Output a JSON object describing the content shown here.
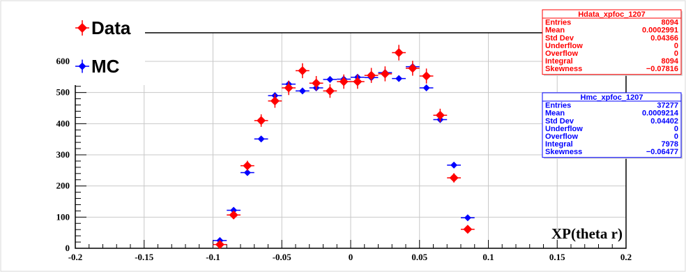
{
  "chart_data": {
    "type": "scatter",
    "x_axis": {
      "title": "XP(theta r)",
      "min": -0.2,
      "max": 0.2,
      "tick_labels": [
        "-0.2",
        "-0.15",
        "-0.1",
        "-0.05",
        "0",
        "0.05",
        "0.1",
        "0.15",
        "0.2"
      ],
      "tick_values": [
        -0.2,
        -0.15,
        -0.1,
        -0.05,
        0,
        0.05,
        0.1,
        0.15,
        0.2
      ]
    },
    "y_axis": {
      "min": 0,
      "max": 700,
      "tick_labels": [
        "0",
        "100",
        "200",
        "300",
        "400",
        "500",
        "600"
      ],
      "tick_values": [
        0,
        100,
        200,
        300,
        400,
        500,
        600
      ]
    },
    "grid": true,
    "bin_half_width": 0.005,
    "legend": {
      "placement": "top-left",
      "entries": [
        {
          "label": "Data",
          "color": "#ff0000"
        },
        {
          "label": "MC",
          "color": "#0000ff"
        }
      ]
    },
    "series": [
      {
        "name": "Data",
        "color": "#ff0000",
        "marker": "diamond",
        "x": [
          -0.095,
          -0.085,
          -0.075,
          -0.065,
          -0.055,
          -0.045,
          -0.035,
          -0.025,
          -0.015,
          -0.005,
          0.005,
          0.015,
          0.025,
          0.035,
          0.045,
          0.055,
          0.065,
          0.075,
          0.085
        ],
        "y": [
          12,
          107,
          265,
          410,
          473,
          515,
          570,
          530,
          505,
          535,
          535,
          555,
          560,
          628,
          578,
          553,
          427,
          226,
          61
        ],
        "err": [
          4,
          10,
          16,
          20,
          22,
          23,
          24,
          23,
          22,
          23,
          23,
          24,
          24,
          25,
          24,
          24,
          21,
          15,
          8
        ]
      },
      {
        "name": "MC",
        "color": "#0000ff",
        "marker": "diamond",
        "x": [
          -0.095,
          -0.085,
          -0.075,
          -0.065,
          -0.055,
          -0.045,
          -0.035,
          -0.025,
          -0.015,
          -0.005,
          0.005,
          0.015,
          0.025,
          0.035,
          0.045,
          0.055,
          0.065,
          0.075,
          0.085
        ],
        "y": [
          25,
          122,
          243,
          351,
          490,
          527,
          505,
          515,
          542,
          543,
          549,
          548,
          564,
          545,
          583,
          515,
          413,
          267,
          98
        ],
        "err": [
          3,
          5,
          7,
          8,
          10,
          10,
          10,
          10,
          10,
          10,
          10,
          10,
          10,
          10,
          10,
          10,
          9,
          7,
          4
        ]
      }
    ],
    "stat_boxes": [
      {
        "title": "Hdata_xpfoc_1207",
        "color": "#ff0000",
        "rows": [
          {
            "label": "Entries",
            "value": "8094"
          },
          {
            "label": "Mean",
            "value": "0.0002991"
          },
          {
            "label": "Std Dev",
            "value": "0.04366"
          },
          {
            "label": "Underflow",
            "value": "0"
          },
          {
            "label": "Overflow",
            "value": "0"
          },
          {
            "label": "Integral",
            "value": "8094"
          },
          {
            "label": "Skewness",
            "value": "−0.07816"
          }
        ]
      },
      {
        "title": "Hmc_xpfoc_1207",
        "color": "#0000ff",
        "rows": [
          {
            "label": "Entries",
            "value": "37277"
          },
          {
            "label": "Mean",
            "value": "0.0009214"
          },
          {
            "label": "Std Dev",
            "value": "0.04402"
          },
          {
            "label": "Underflow",
            "value": "0"
          },
          {
            "label": "Overflow",
            "value": "0"
          },
          {
            "label": "Integral",
            "value": "7978"
          },
          {
            "label": "Skewness",
            "value": "−0.06477"
          }
        ]
      }
    ]
  }
}
